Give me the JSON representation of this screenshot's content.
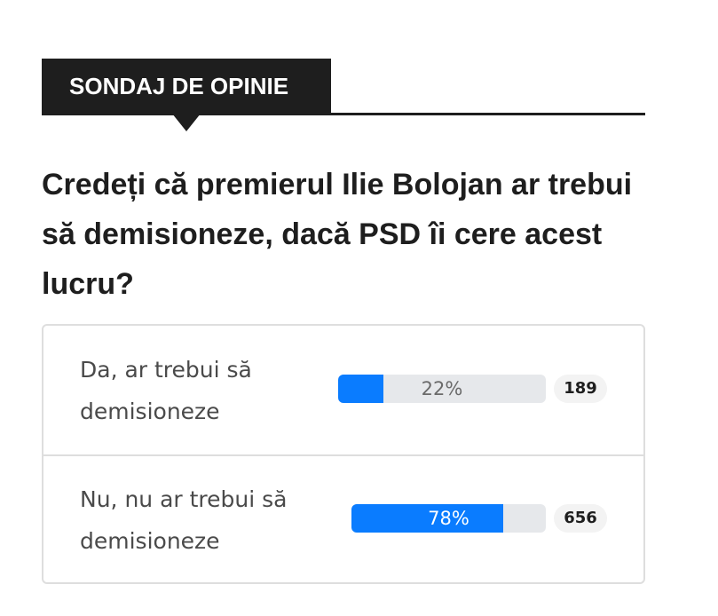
{
  "header": {
    "title": "SONDAJ DE OPINIE"
  },
  "question": "Credeți că premierul Ilie Bolojan ar trebui să demisioneze, dacă PSD îi cere acest lucru?",
  "options": [
    {
      "label": "Da, ar trebui să demisioneze",
      "percent": {
        "value": 22,
        "label": "22%"
      },
      "votes": 189
    },
    {
      "label": "Nu, nu ar trebui să demisioneze",
      "percent": {
        "value": 78,
        "label": "78%"
      },
      "votes": 656
    }
  ]
}
